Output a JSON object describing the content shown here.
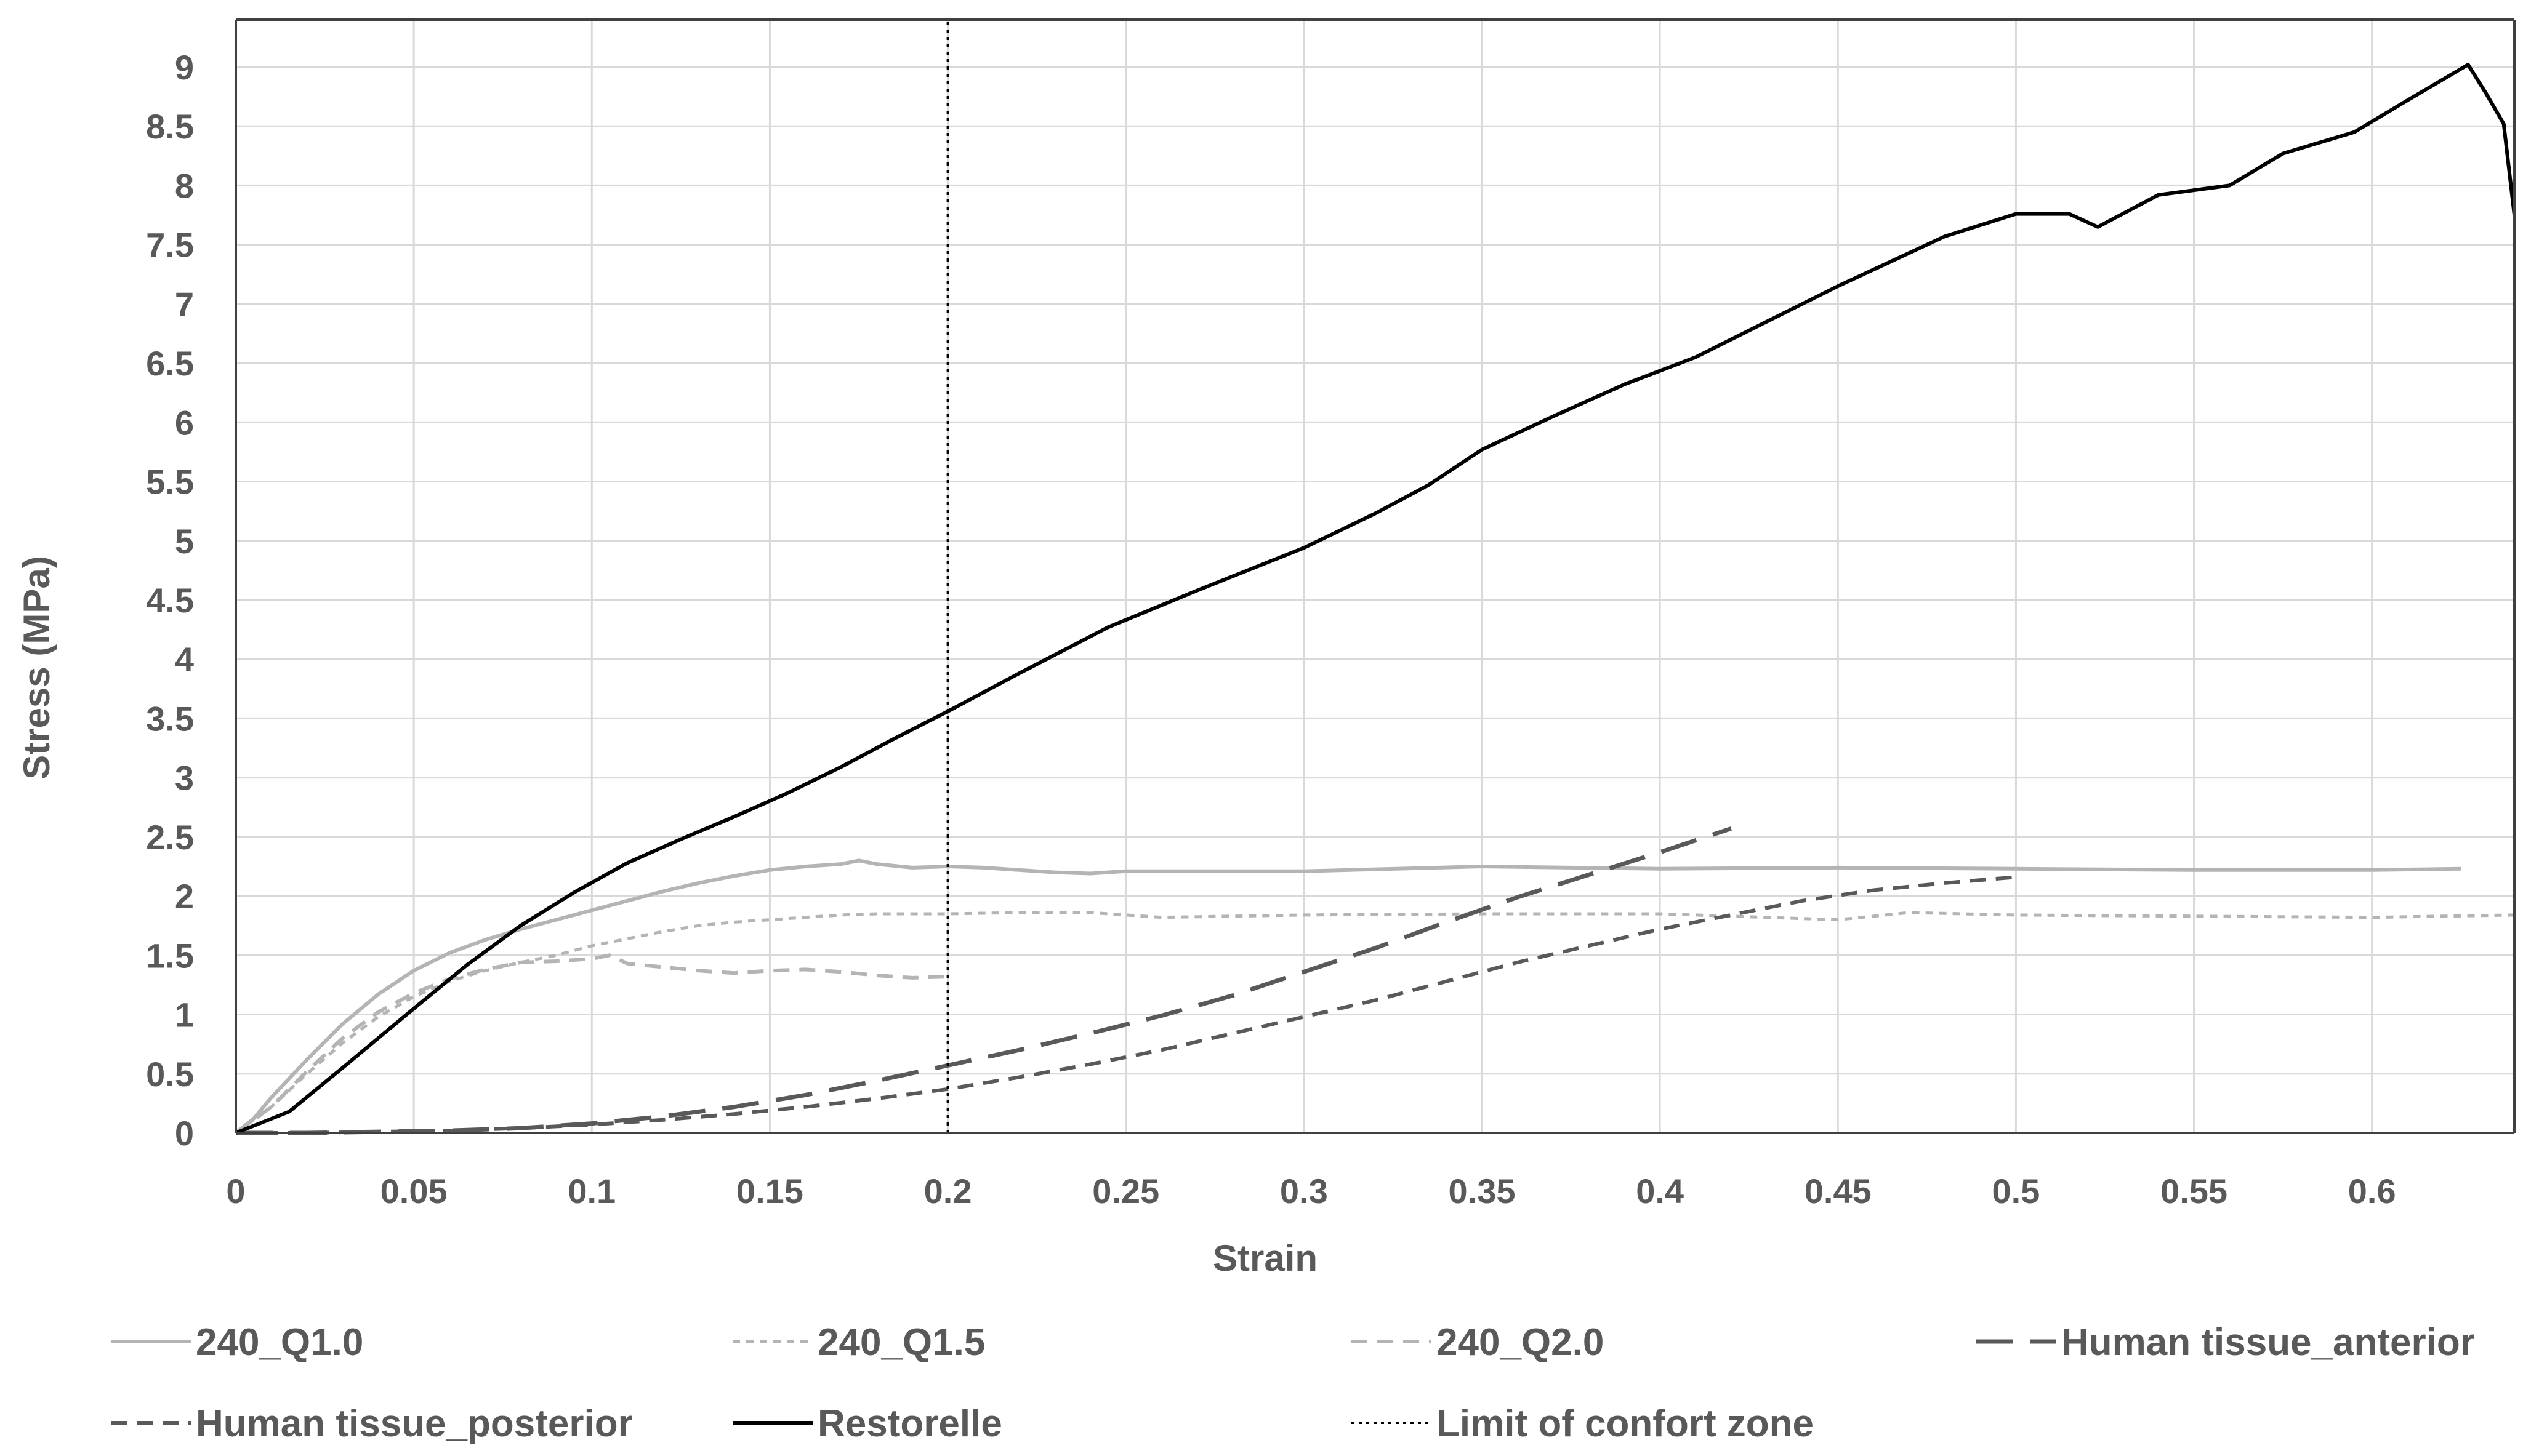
{
  "chart_data": {
    "type": "line",
    "title": "",
    "xlabel": "Strain",
    "ylabel": "Stress (MPa)",
    "xlim": [
      0,
      0.64
    ],
    "ylim": [
      0,
      9.4
    ],
    "x_ticks": [
      "0",
      "0.05",
      "0.1",
      "0.15",
      "0.2",
      "0.25",
      "0.3",
      "0.35",
      "0.4",
      "0.45",
      "0.5",
      "0.55",
      "0.6"
    ],
    "y_ticks": [
      "0",
      "0.5",
      "1",
      "1.5",
      "2",
      "2.5",
      "3",
      "3.5",
      "4",
      "4.5",
      "5",
      "5.5",
      "6",
      "6.5",
      "7",
      "7.5",
      "8",
      "8.5",
      "9"
    ],
    "grid": true,
    "legend_position": "bottom",
    "series": [
      {
        "name": "240_Q1.0",
        "color": "#b4b4b4",
        "style": "solid",
        "points": [
          [
            0,
            0
          ],
          [
            0.005,
            0.12
          ],
          [
            0.01,
            0.3
          ],
          [
            0.02,
            0.62
          ],
          [
            0.03,
            0.92
          ],
          [
            0.04,
            1.17
          ],
          [
            0.05,
            1.37
          ],
          [
            0.06,
            1.52
          ],
          [
            0.07,
            1.63
          ],
          [
            0.08,
            1.72
          ],
          [
            0.09,
            1.8
          ],
          [
            0.1,
            1.88
          ],
          [
            0.11,
            1.96
          ],
          [
            0.12,
            2.04
          ],
          [
            0.13,
            2.11
          ],
          [
            0.14,
            2.17
          ],
          [
            0.15,
            2.22
          ],
          [
            0.16,
            2.25
          ],
          [
            0.17,
            2.27
          ],
          [
            0.175,
            2.3
          ],
          [
            0.18,
            2.27
          ],
          [
            0.19,
            2.24
          ],
          [
            0.2,
            2.25
          ],
          [
            0.21,
            2.24
          ],
          [
            0.22,
            2.22
          ],
          [
            0.23,
            2.2
          ],
          [
            0.24,
            2.19
          ],
          [
            0.25,
            2.21
          ],
          [
            0.3,
            2.21
          ],
          [
            0.35,
            2.25
          ],
          [
            0.4,
            2.23
          ],
          [
            0.45,
            2.24
          ],
          [
            0.5,
            2.23
          ],
          [
            0.55,
            2.22
          ],
          [
            0.6,
            2.22
          ],
          [
            0.625,
            2.23
          ]
        ]
      },
      {
        "name": "240_Q1.5",
        "color": "#b4b4b4",
        "style": "dotted",
        "points": [
          [
            0,
            0
          ],
          [
            0.01,
            0.22
          ],
          [
            0.02,
            0.5
          ],
          [
            0.03,
            0.76
          ],
          [
            0.04,
            0.98
          ],
          [
            0.05,
            1.15
          ],
          [
            0.06,
            1.28
          ],
          [
            0.07,
            1.37
          ],
          [
            0.08,
            1.44
          ],
          [
            0.09,
            1.5
          ],
          [
            0.1,
            1.58
          ],
          [
            0.11,
            1.64
          ],
          [
            0.12,
            1.7
          ],
          [
            0.13,
            1.75
          ],
          [
            0.14,
            1.78
          ],
          [
            0.15,
            1.8
          ],
          [
            0.16,
            1.82
          ],
          [
            0.17,
            1.84
          ],
          [
            0.18,
            1.85
          ],
          [
            0.2,
            1.85
          ],
          [
            0.22,
            1.86
          ],
          [
            0.24,
            1.86
          ],
          [
            0.26,
            1.82
          ],
          [
            0.3,
            1.84
          ],
          [
            0.35,
            1.85
          ],
          [
            0.4,
            1.85
          ],
          [
            0.45,
            1.8
          ],
          [
            0.47,
            1.86
          ],
          [
            0.5,
            1.84
          ],
          [
            0.55,
            1.83
          ],
          [
            0.6,
            1.82
          ],
          [
            0.64,
            1.84
          ]
        ]
      },
      {
        "name": "240_Q2.0",
        "color": "#b4b4b4",
        "style": "dashed",
        "points": [
          [
            0,
            0
          ],
          [
            0.01,
            0.22
          ],
          [
            0.02,
            0.52
          ],
          [
            0.03,
            0.8
          ],
          [
            0.04,
            1.02
          ],
          [
            0.05,
            1.18
          ],
          [
            0.06,
            1.3
          ],
          [
            0.07,
            1.38
          ],
          [
            0.08,
            1.44
          ],
          [
            0.09,
            1.45
          ],
          [
            0.1,
            1.47
          ],
          [
            0.105,
            1.5
          ],
          [
            0.11,
            1.43
          ],
          [
            0.12,
            1.4
          ],
          [
            0.13,
            1.37
          ],
          [
            0.14,
            1.35
          ],
          [
            0.15,
            1.37
          ],
          [
            0.16,
            1.38
          ],
          [
            0.17,
            1.36
          ],
          [
            0.18,
            1.33
          ],
          [
            0.19,
            1.31
          ],
          [
            0.2,
            1.32
          ]
        ]
      },
      {
        "name": "Human tissue_anterior",
        "color": "#595959",
        "style": "longdash",
        "points": [
          [
            0,
            0
          ],
          [
            0.02,
            0.0
          ],
          [
            0.04,
            0.01
          ],
          [
            0.06,
            0.02
          ],
          [
            0.08,
            0.04
          ],
          [
            0.1,
            0.08
          ],
          [
            0.12,
            0.14
          ],
          [
            0.14,
            0.22
          ],
          [
            0.16,
            0.32
          ],
          [
            0.18,
            0.44
          ],
          [
            0.2,
            0.57
          ],
          [
            0.22,
            0.7
          ],
          [
            0.24,
            0.84
          ],
          [
            0.26,
            0.99
          ],
          [
            0.28,
            1.16
          ],
          [
            0.3,
            1.36
          ],
          [
            0.32,
            1.56
          ],
          [
            0.34,
            1.78
          ],
          [
            0.36,
            1.99
          ],
          [
            0.38,
            2.18
          ],
          [
            0.4,
            2.37
          ],
          [
            0.42,
            2.57
          ]
        ]
      },
      {
        "name": "Human tissue_posterior",
        "color": "#595959",
        "style": "dashed",
        "points": [
          [
            0,
            0
          ],
          [
            0.02,
            0.0
          ],
          [
            0.04,
            0.01
          ],
          [
            0.06,
            0.02
          ],
          [
            0.08,
            0.04
          ],
          [
            0.1,
            0.07
          ],
          [
            0.12,
            0.11
          ],
          [
            0.14,
            0.16
          ],
          [
            0.16,
            0.22
          ],
          [
            0.18,
            0.29
          ],
          [
            0.2,
            0.37
          ],
          [
            0.22,
            0.47
          ],
          [
            0.24,
            0.58
          ],
          [
            0.26,
            0.7
          ],
          [
            0.28,
            0.84
          ],
          [
            0.3,
            0.98
          ],
          [
            0.32,
            1.12
          ],
          [
            0.34,
            1.28
          ],
          [
            0.36,
            1.44
          ],
          [
            0.38,
            1.58
          ],
          [
            0.4,
            1.72
          ],
          [
            0.42,
            1.84
          ],
          [
            0.44,
            1.96
          ],
          [
            0.46,
            2.05
          ],
          [
            0.48,
            2.11
          ],
          [
            0.5,
            2.16
          ]
        ]
      },
      {
        "name": "Restorelle",
        "color": "#000000",
        "style": "solid",
        "points": [
          [
            0,
            0
          ],
          [
            0.015,
            0.18
          ],
          [
            0.03,
            0.55
          ],
          [
            0.05,
            1.05
          ],
          [
            0.065,
            1.42
          ],
          [
            0.08,
            1.75
          ],
          [
            0.095,
            2.03
          ],
          [
            0.11,
            2.28
          ],
          [
            0.125,
            2.48
          ],
          [
            0.14,
            2.67
          ],
          [
            0.155,
            2.87
          ],
          [
            0.17,
            3.09
          ],
          [
            0.185,
            3.33
          ],
          [
            0.2,
            3.56
          ],
          [
            0.22,
            3.88
          ],
          [
            0.245,
            4.27
          ],
          [
            0.27,
            4.58
          ],
          [
            0.3,
            4.94
          ],
          [
            0.32,
            5.23
          ],
          [
            0.335,
            5.47
          ],
          [
            0.35,
            5.77
          ],
          [
            0.37,
            6.05
          ],
          [
            0.39,
            6.32
          ],
          [
            0.41,
            6.55
          ],
          [
            0.43,
            6.85
          ],
          [
            0.45,
            7.15
          ],
          [
            0.465,
            7.36
          ],
          [
            0.48,
            7.57
          ],
          [
            0.5,
            7.76
          ],
          [
            0.515,
            7.76
          ],
          [
            0.523,
            7.65
          ],
          [
            0.54,
            7.92
          ],
          [
            0.56,
            8.0
          ],
          [
            0.575,
            8.27
          ],
          [
            0.595,
            8.45
          ],
          [
            0.61,
            8.72
          ],
          [
            0.627,
            9.02
          ],
          [
            0.632,
            8.78
          ],
          [
            0.637,
            8.52
          ],
          [
            0.64,
            7.75
          ]
        ]
      },
      {
        "name": "Limit of confort zone",
        "color": "#000000",
        "style": "finedot",
        "points": [
          [
            0.2,
            0
          ],
          [
            0.2,
            9.4
          ]
        ]
      }
    ]
  }
}
